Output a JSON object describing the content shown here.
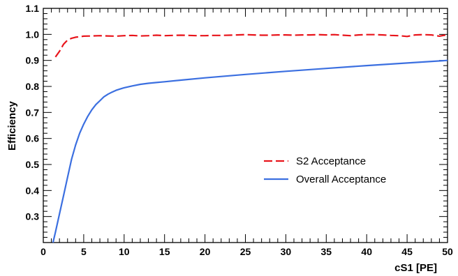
{
  "chart_data": {
    "type": "line",
    "xlabel": "cS1 [PE]",
    "ylabel": "Efficiency",
    "xlim": [
      0,
      50
    ],
    "ylim": [
      0.2,
      1.1
    ],
    "x_ticks": [
      "0",
      "5",
      "10",
      "15",
      "20",
      "25",
      "30",
      "35",
      "40",
      "45",
      "50"
    ],
    "y_ticks": [
      "0.3",
      "0.4",
      "0.5",
      "0.6",
      "0.7",
      "0.8",
      "0.9",
      "1.0",
      "1.1"
    ],
    "y_tick_values": [
      0.3,
      0.4,
      0.5,
      0.6,
      0.7,
      0.8,
      0.9,
      1.0,
      1.1
    ],
    "grid": false,
    "legend_position": "center-right",
    "series": [
      {
        "name": "S2 Acceptance",
        "color": "#e8141b",
        "style": "dashed",
        "x": [
          1.5,
          2,
          2.5,
          3,
          3.5,
          4,
          5,
          6,
          7,
          8,
          9,
          10,
          11,
          12,
          13,
          14,
          15,
          16,
          17,
          18,
          19,
          20,
          21,
          22,
          23,
          24,
          25,
          26,
          27,
          28,
          29,
          30,
          31,
          32,
          33,
          34,
          35,
          36,
          37,
          38,
          39,
          40,
          41,
          42,
          43,
          44,
          45,
          46,
          47,
          48,
          49,
          50
        ],
        "y": [
          0.913,
          0.935,
          0.962,
          0.978,
          0.985,
          0.989,
          0.993,
          0.994,
          0.995,
          0.994,
          0.993,
          0.995,
          0.996,
          0.994,
          0.995,
          0.997,
          0.995,
          0.996,
          0.997,
          0.996,
          0.995,
          0.995,
          0.996,
          0.996,
          0.997,
          0.998,
          0.999,
          0.998,
          0.997,
          0.997,
          0.998,
          0.998,
          0.997,
          0.998,
          0.998,
          0.999,
          0.998,
          0.999,
          0.997,
          0.995,
          0.998,
          0.999,
          0.999,
          0.998,
          0.996,
          0.995,
          0.992,
          0.998,
          0.999,
          0.998,
          0.993,
          0.999
        ]
      },
      {
        "name": "Overall Acceptance",
        "color": "#3b6fe0",
        "style": "solid",
        "x": [
          1.2,
          1.5,
          2,
          2.5,
          3,
          3.5,
          4,
          4.5,
          5,
          5.5,
          6,
          6.5,
          7,
          7.5,
          8,
          8.5,
          9,
          9.5,
          10,
          11,
          12,
          13,
          14,
          15,
          17,
          20,
          25,
          30,
          35,
          40,
          45,
          50
        ],
        "y": [
          0.2,
          0.24,
          0.31,
          0.38,
          0.45,
          0.52,
          0.575,
          0.62,
          0.655,
          0.685,
          0.71,
          0.73,
          0.745,
          0.76,
          0.77,
          0.778,
          0.785,
          0.79,
          0.795,
          0.802,
          0.808,
          0.812,
          0.815,
          0.818,
          0.824,
          0.833,
          0.846,
          0.858,
          0.869,
          0.88,
          0.89,
          0.9
        ]
      }
    ]
  }
}
